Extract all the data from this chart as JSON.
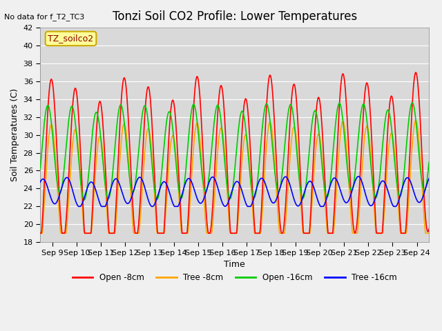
{
  "title": "Tonzi Soil CO2 Profile: Lower Temperatures",
  "no_data_text": "No data for f_T2_TC3",
  "legend_box_text": "TZ_soilco2",
  "xlabel": "Time",
  "ylabel": "Soil Temperatures (C)",
  "ylim": [
    18,
    42
  ],
  "yticks": [
    18,
    20,
    22,
    24,
    26,
    28,
    30,
    32,
    34,
    36,
    38,
    40,
    42
  ],
  "xtick_labels": [
    "Sep 9",
    "Sep 10",
    "Sep 11",
    "Sep 12",
    "Sep 13",
    "Sep 14",
    "Sep 15",
    "Sep 16",
    "Sep 17",
    "Sep 18",
    "Sep 19",
    "Sep 20",
    "Sep 21",
    "Sep 22",
    "Sep 23",
    "Sep 24"
  ],
  "colors": {
    "open_8cm": "#ff0000",
    "tree_8cm": "#ffa500",
    "open_16cm": "#00cc00",
    "tree_16cm": "#0000ff"
  },
  "background_color": "#d9d9d9",
  "fig_background": "#f0f0f0",
  "legend_labels": [
    "Open -8cm",
    "Tree -8cm",
    "Open -16cm",
    "Tree -16cm"
  ]
}
